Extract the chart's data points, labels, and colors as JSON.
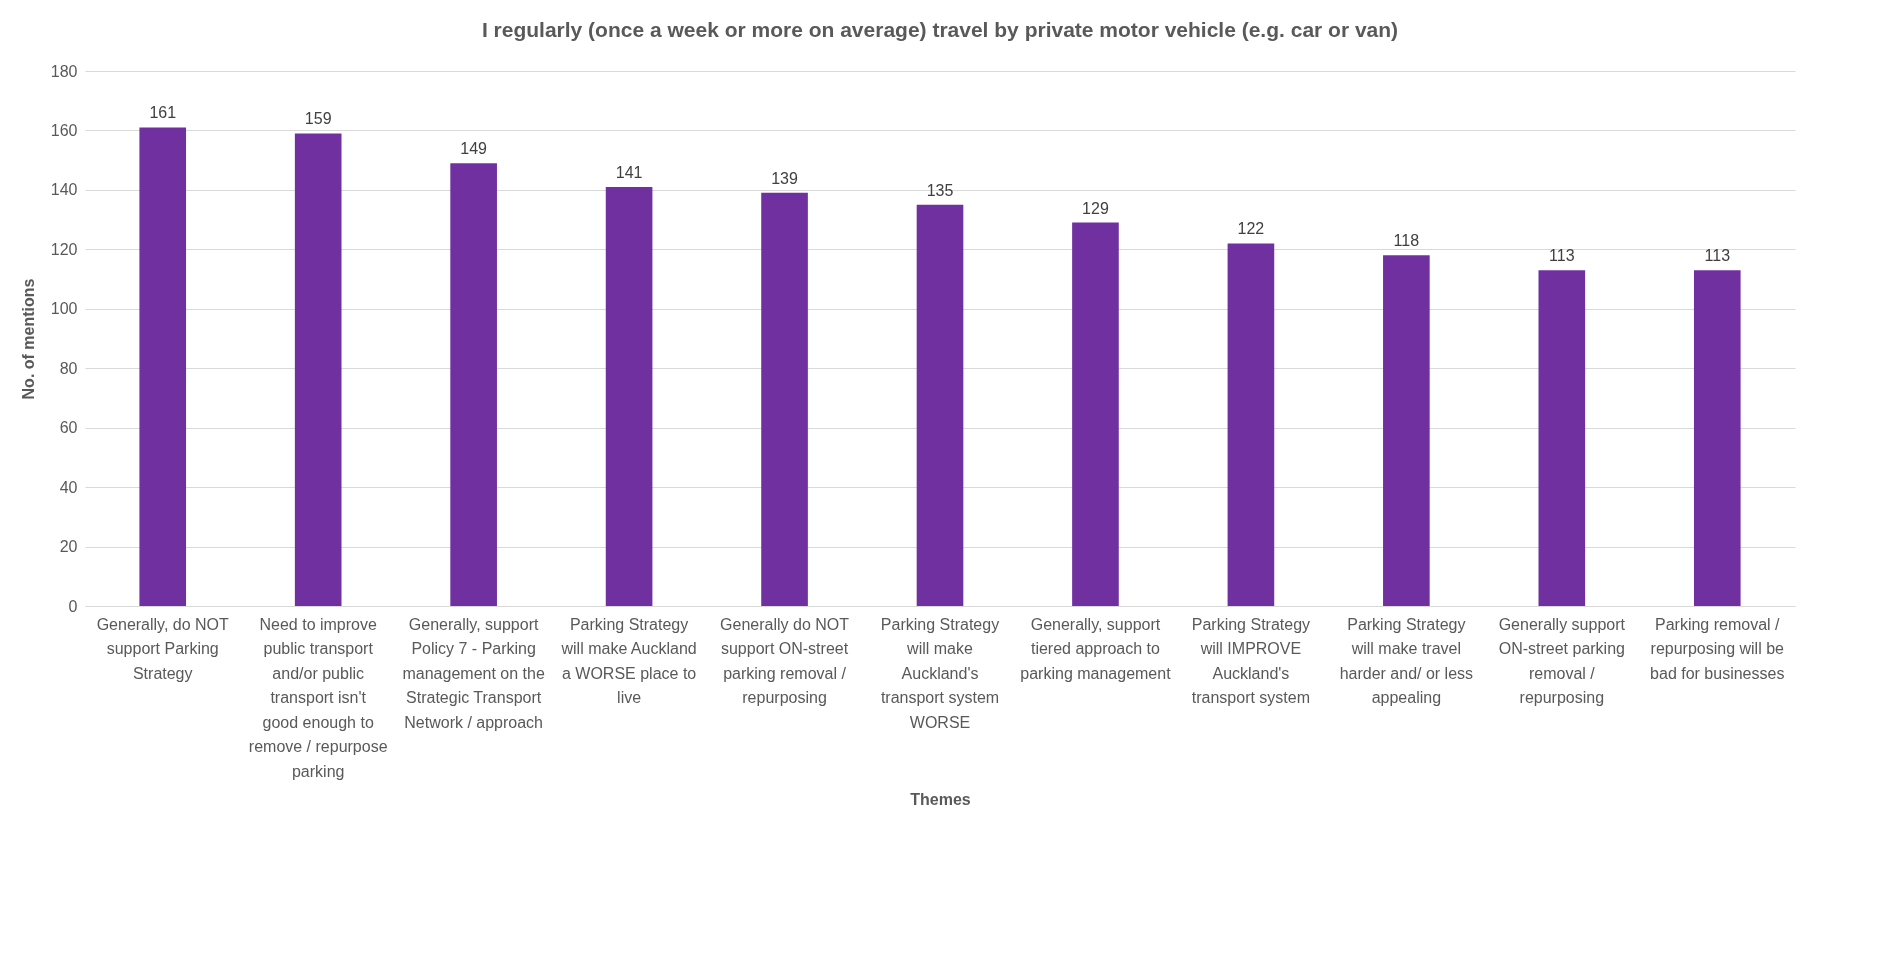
{
  "chart_data": {
    "type": "bar",
    "title": "I regularly (once a week or more on average) travel by private motor vehicle (e.g. car or van)",
    "xlabel": "Themes",
    "ylabel": "No. of mentions",
    "categories": [
      "Generally, do NOT support Parking Strategy",
      "Need to improve public transport and/or public transport isn't good enough to remove / repurpose parking",
      "Generally, support Policy 7 - Parking management on the Strategic Transport Network / approach",
      "Parking Strategy will make Auckland a WORSE place to live",
      "Generally do NOT support ON-street parking removal / repurposing",
      "Parking Strategy will make Auckland's transport system WORSE",
      "Generally, support tiered approach to parking management",
      "Parking Strategy will IMPROVE Auckland's transport system",
      "Parking Strategy will make travel harder and/ or less appealing",
      "Generally support ON-street parking removal / repurposing",
      "Parking removal / repurposing will be bad for businesses"
    ],
    "values": [
      161,
      159,
      149,
      141,
      139,
      135,
      129,
      122,
      118,
      113,
      113
    ],
    "color": "#7030a0",
    "ylim": [
      0,
      180
    ],
    "yticks": [
      0,
      20,
      40,
      60,
      80,
      100,
      120,
      140,
      160,
      180
    ],
    "grid": "y",
    "data_labels": true
  }
}
